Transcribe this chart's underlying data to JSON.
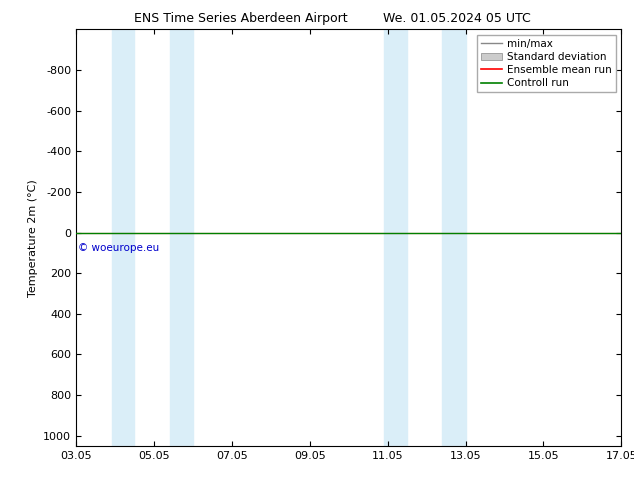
{
  "title_left": "ENS Time Series Aberdeen Airport",
  "title_right": "We. 01.05.2024 05 UTC",
  "ylabel": "Temperature 2m (°C)",
  "ylim": [
    -1000,
    1050
  ],
  "yticks": [
    -800,
    -600,
    -400,
    -200,
    0,
    200,
    400,
    600,
    800,
    1000
  ],
  "xtick_labels": [
    "03.05",
    "05.05",
    "07.05",
    "09.05",
    "11.05",
    "13.05",
    "15.05",
    "17.05"
  ],
  "xtick_positions": [
    3,
    5,
    7,
    9,
    11,
    13,
    15,
    17
  ],
  "xlim": [
    3,
    17
  ],
  "blue_bands": [
    [
      3.92,
      4.5
    ],
    [
      5.4,
      6.0
    ],
    [
      10.9,
      11.5
    ],
    [
      12.4,
      13.0
    ]
  ],
  "blue_band_color": "#daeef8",
  "control_run_y": 0,
  "ensemble_mean_y": 0,
  "control_run_color": "#008000",
  "ensemble_mean_color": "#ff0000",
  "minmax_color": "#888888",
  "std_dev_color": "#cccccc",
  "watermark": "© woeurope.eu",
  "watermark_color": "#0000cc",
  "background_color": "#ffffff",
  "legend_labels": [
    "min/max",
    "Standard deviation",
    "Ensemble mean run",
    "Controll run"
  ],
  "legend_colors": [
    "#888888",
    "#cccccc",
    "#ff0000",
    "#008000"
  ],
  "title_fontsize": 9,
  "axis_fontsize": 8,
  "legend_fontsize": 7.5
}
